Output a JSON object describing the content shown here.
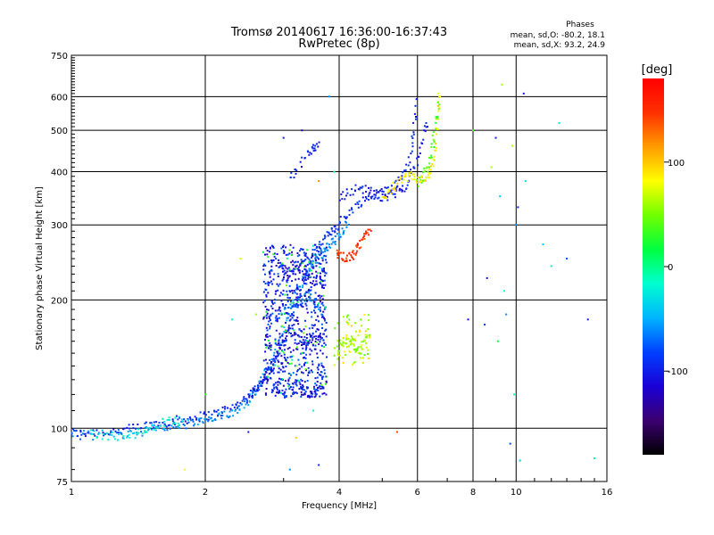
{
  "chart_data": {
    "type": "scatter",
    "title": "Tromsø 20140617 16:36:00-16:37:43",
    "subtitle": "RwPretec (8p)",
    "xlabel": "Frequency [MHz]",
    "ylabel": "Stationary phase Virtual Height [km]",
    "x_scale": "log",
    "y_scale": "log",
    "xlim": [
      1,
      16
    ],
    "ylim": [
      75,
      750
    ],
    "x_ticks": [
      1,
      2,
      4,
      6,
      8,
      10,
      16
    ],
    "x_tick_labels": [
      "1",
      "2",
      "4",
      "6",
      "8",
      "10",
      "16"
    ],
    "y_ticks": [
      75,
      100,
      200,
      300,
      400,
      500,
      600,
      750
    ],
    "y_tick_labels": [
      "75",
      "100",
      "200",
      "300",
      "400",
      "500",
      "600",
      "750"
    ],
    "grid": true,
    "phase_stats": {
      "heading": "Phases",
      "line_o": "mean, sd,O: -80.2, 18.1",
      "line_x": "mean, sd,X:  93.2, 24.9"
    },
    "colorbar": {
      "label": "[deg]",
      "range": [
        -180,
        180
      ],
      "ticks": [
        100,
        0,
        -100
      ],
      "tick_labels": [
        "100",
        "0",
        "-100"
      ],
      "colormap": "rainbow"
    },
    "color_scale_hex": [
      "#000000",
      "#3b0070",
      "#1a00d6",
      "#0040ff",
      "#00b4ff",
      "#00ffd0",
      "#00ff40",
      "#70ff00",
      "#ffff00",
      "#ff9c00",
      "#ff3000",
      "#ff0000"
    ],
    "traces": [
      {
        "phase": -95,
        "points": [
          [
            1.0,
            98
          ],
          [
            1.05,
            97
          ],
          [
            1.1,
            98
          ],
          [
            1.2,
            98
          ],
          [
            1.3,
            99
          ],
          [
            1.4,
            100
          ],
          [
            1.5,
            102
          ],
          [
            1.6,
            103
          ],
          [
            1.7,
            104
          ],
          [
            1.8,
            105
          ],
          [
            1.9,
            106
          ],
          [
            2.0,
            107
          ],
          [
            2.1,
            108
          ],
          [
            2.2,
            110
          ],
          [
            2.3,
            112
          ],
          [
            2.4,
            115
          ],
          [
            2.5,
            118
          ],
          [
            2.6,
            122
          ],
          [
            2.7,
            128
          ],
          [
            2.8,
            135
          ],
          [
            2.9,
            145
          ],
          [
            3.0,
            158
          ],
          [
            3.1,
            175
          ],
          [
            3.2,
            195
          ],
          [
            3.3,
            215
          ],
          [
            3.4,
            235
          ],
          [
            3.5,
            252
          ],
          [
            3.6,
            265
          ],
          [
            3.7,
            275
          ],
          [
            3.8,
            285
          ],
          [
            3.9,
            295
          ],
          [
            4.0,
            302
          ],
          [
            4.2,
            320
          ],
          [
            4.4,
            335
          ],
          [
            4.6,
            345
          ],
          [
            4.8,
            352
          ],
          [
            5.0,
            358
          ],
          [
            5.2,
            365
          ],
          [
            5.4,
            375
          ],
          [
            5.6,
            395
          ],
          [
            5.8,
            440
          ],
          [
            5.9,
            500
          ],
          [
            6.0,
            600
          ]
        ]
      },
      {
        "phase": -60,
        "points": [
          [
            1.0,
            97
          ],
          [
            1.1,
            96
          ],
          [
            1.2,
            97
          ],
          [
            1.3,
            97
          ],
          [
            1.4,
            98
          ],
          [
            1.5,
            99
          ],
          [
            1.6,
            100
          ],
          [
            1.7,
            101
          ],
          [
            1.8,
            102
          ],
          [
            1.9,
            103
          ],
          [
            2.0,
            104
          ],
          [
            2.1,
            105
          ],
          [
            2.2,
            107
          ],
          [
            2.3,
            109
          ],
          [
            2.4,
            112
          ],
          [
            2.5,
            117
          ],
          [
            2.6,
            123
          ],
          [
            2.7,
            131
          ],
          [
            2.8,
            142
          ],
          [
            2.9,
            155
          ],
          [
            3.0,
            172
          ],
          [
            3.1,
            190
          ],
          [
            3.2,
            205
          ],
          [
            3.3,
            220
          ],
          [
            3.4,
            232
          ],
          [
            3.5,
            242
          ],
          [
            3.6,
            252
          ],
          [
            3.7,
            260
          ],
          [
            3.8,
            268
          ],
          [
            3.9,
            275
          ],
          [
            4.0,
            283
          ],
          [
            4.1,
            292
          ],
          [
            4.2,
            305
          ]
        ]
      },
      {
        "phase": -100,
        "points": [
          [
            4.0,
            345
          ],
          [
            4.2,
            360
          ],
          [
            4.4,
            365
          ],
          [
            4.6,
            362
          ],
          [
            4.8,
            355
          ],
          [
            5.0,
            350
          ],
          [
            5.2,
            352
          ],
          [
            5.4,
            358
          ],
          [
            5.6,
            368
          ],
          [
            5.8,
            390
          ],
          [
            6.0,
            425
          ],
          [
            6.2,
            480
          ],
          [
            6.3,
            530
          ]
        ]
      },
      {
        "phase": -105,
        "points": [
          [
            2.5,
            118
          ],
          [
            2.6,
            125
          ],
          [
            2.7,
            130
          ],
          [
            2.8,
            140
          ],
          [
            2.9,
            150
          ],
          [
            3.0,
            160
          ],
          [
            3.1,
            170
          ],
          [
            3.2,
            165
          ],
          [
            3.3,
            155
          ],
          [
            3.4,
            160
          ],
          [
            3.5,
            165
          ],
          [
            3.6,
            160
          ],
          [
            3.7,
            165
          ]
        ]
      },
      {
        "phase": -110,
        "points": [
          [
            2.9,
            250
          ],
          [
            3.0,
            240
          ],
          [
            3.1,
            230
          ],
          [
            3.2,
            235
          ],
          [
            3.3,
            240
          ],
          [
            3.4,
            230
          ],
          [
            3.5,
            220
          ],
          [
            3.6,
            225
          ],
          [
            3.7,
            215
          ]
        ]
      },
      {
        "phase": 150,
        "points": [
          [
            3.95,
            260
          ],
          [
            4.0,
            255
          ],
          [
            4.1,
            252
          ],
          [
            4.2,
            252
          ],
          [
            4.3,
            255
          ],
          [
            4.4,
            262
          ],
          [
            4.5,
            272
          ],
          [
            4.6,
            285
          ],
          [
            4.7,
            298
          ]
        ]
      },
      {
        "phase": 85,
        "points": [
          [
            5.0,
            345
          ],
          [
            5.2,
            360
          ],
          [
            5.4,
            375
          ],
          [
            5.6,
            385
          ],
          [
            5.8,
            390
          ],
          [
            6.0,
            385
          ],
          [
            6.2,
            380
          ],
          [
            6.4,
            390
          ],
          [
            6.5,
            420
          ],
          [
            6.6,
            470
          ],
          [
            6.7,
            550
          ],
          [
            6.7,
            620
          ]
        ]
      },
      {
        "phase": 40,
        "points": [
          [
            6.0,
            375
          ],
          [
            6.2,
            395
          ],
          [
            6.4,
            420
          ],
          [
            6.5,
            460
          ],
          [
            6.6,
            520
          ],
          [
            6.7,
            580
          ]
        ]
      },
      {
        "phase": 60,
        "points": [
          [
            3.9,
            150
          ],
          [
            4.0,
            155
          ],
          [
            4.1,
            160
          ],
          [
            4.2,
            158
          ],
          [
            4.3,
            162
          ],
          [
            4.4,
            150
          ],
          [
            4.5,
            155
          ],
          [
            4.6,
            165
          ],
          [
            4.7,
            160
          ]
        ]
      },
      {
        "phase": -20,
        "points": [
          [
            1.1,
            97
          ],
          [
            1.2,
            96
          ],
          [
            1.3,
            96
          ],
          [
            1.4,
            97
          ],
          [
            1.5,
            99
          ],
          [
            1.6,
            103
          ],
          [
            1.7,
            104
          ],
          [
            1.8,
            104
          ]
        ]
      },
      {
        "phase": -70,
        "points": [
          [
            3.0,
            190
          ],
          [
            3.1,
            200
          ],
          [
            3.2,
            195
          ],
          [
            3.3,
            200
          ],
          [
            3.4,
            205
          ],
          [
            3.5,
            200
          ],
          [
            3.6,
            195
          ],
          [
            3.7,
            185
          ]
        ]
      },
      {
        "phase": -100,
        "points": [
          [
            3.6,
            460
          ],
          [
            3.5,
            450
          ],
          [
            3.4,
            440
          ],
          [
            3.2,
            400
          ],
          [
            3.1,
            390
          ]
        ]
      },
      {
        "phase": -95,
        "points": [
          [
            3.0,
            120
          ],
          [
            3.1,
            125
          ],
          [
            3.2,
            128
          ],
          [
            3.3,
            125
          ],
          [
            3.4,
            122
          ],
          [
            3.5,
            120
          ],
          [
            3.6,
            124
          ],
          [
            3.7,
            125
          ]
        ]
      }
    ],
    "scatter_points": [
      [
        8.5,
        175,
        -90
      ],
      [
        8.6,
        225,
        -110
      ],
      [
        8.8,
        410,
        60
      ],
      [
        9.1,
        160,
        20
      ],
      [
        9.2,
        350,
        -40
      ],
      [
        9.4,
        210,
        -20
      ],
      [
        9.5,
        185,
        -60
      ],
      [
        9.7,
        92,
        -80
      ],
      [
        9.8,
        460,
        60
      ],
      [
        9.9,
        120,
        -10
      ],
      [
        10.0,
        300,
        -60
      ],
      [
        10.1,
        330,
        -100
      ],
      [
        10.2,
        84,
        -40
      ],
      [
        10.4,
        610,
        -100
      ],
      [
        10.5,
        380,
        -30
      ],
      [
        11.5,
        270,
        -40
      ],
      [
        12.0,
        240,
        -10
      ],
      [
        12.5,
        520,
        -20
      ],
      [
        13.0,
        250,
        -80
      ],
      [
        14.5,
        180,
        -100
      ],
      [
        15.0,
        85,
        0
      ],
      [
        8.0,
        500,
        40
      ],
      [
        9.0,
        480,
        -100
      ],
      [
        9.3,
        640,
        60
      ],
      [
        7.8,
        180,
        -110
      ],
      [
        3.9,
        400,
        -10
      ],
      [
        3.6,
        380,
        120
      ],
      [
        3.8,
        600,
        -60
      ],
      [
        2.6,
        185,
        60
      ],
      [
        2.3,
        180,
        -20
      ],
      [
        2.0,
        120,
        30
      ],
      [
        2.4,
        250,
        70
      ],
      [
        3.0,
        480,
        -100
      ],
      [
        3.3,
        500,
        -120
      ],
      [
        3.5,
        110,
        -20
      ],
      [
        3.2,
        95,
        100
      ],
      [
        3.1,
        80,
        -60
      ],
      [
        3.6,
        82,
        -100
      ],
      [
        2.5,
        98,
        -100
      ],
      [
        1.8,
        80,
        80
      ],
      [
        5.4,
        98,
        140
      ],
      [
        3.3,
        150,
        20
      ],
      [
        3.2,
        140,
        40
      ]
    ]
  }
}
